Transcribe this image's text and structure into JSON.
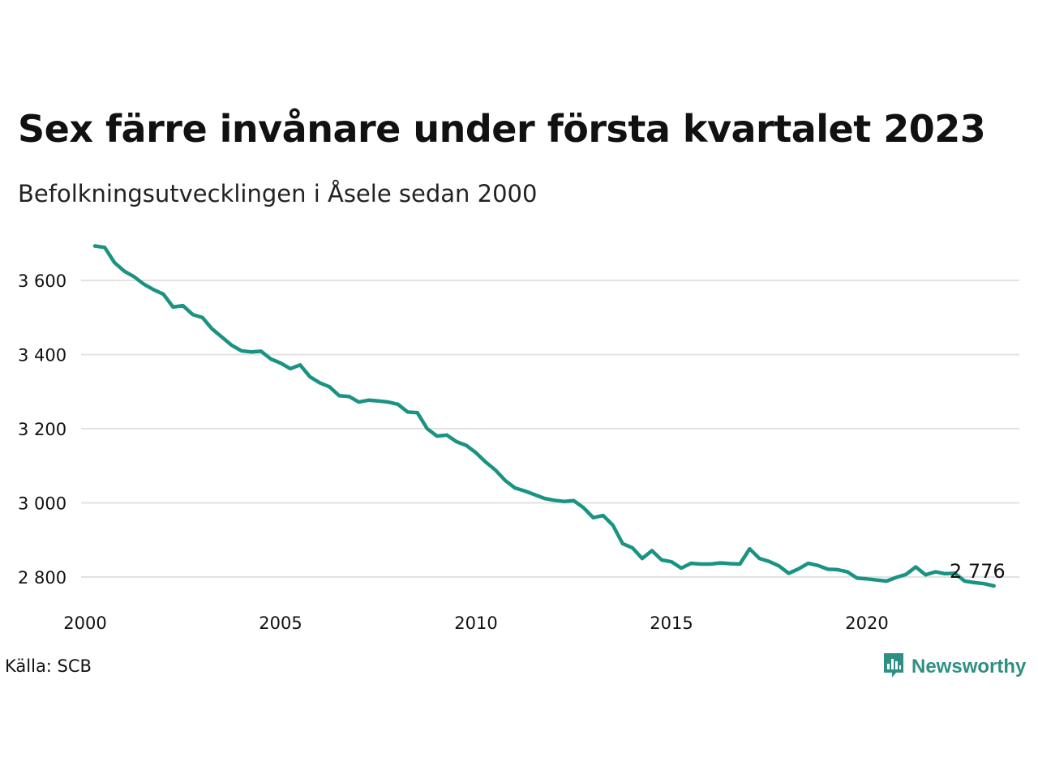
{
  "title": "Sex färre invånare under första kvartalet 2023",
  "subtitle": "Befolkningsutvecklingen i Åsele sedan 2000",
  "source": "Källa: SCB",
  "brand": {
    "name": "Newsworthy",
    "icon": "newsworthy-logo-icon",
    "color": "#2f8f83"
  },
  "chart_data": {
    "type": "line",
    "title": "Sex färre invånare under första kvartalet 2023",
    "subtitle": "Befolkningsutvecklingen i Åsele sedan 2000",
    "color": "#1a9383",
    "xlim": [
      2000,
      2024
    ],
    "ylim": [
      2740,
      3720
    ],
    "y_ticks": [
      2800,
      3000,
      3200,
      3400,
      3600
    ],
    "y_tick_labels": [
      "2 800",
      "3 000",
      "3 200",
      "3 400",
      "3 600"
    ],
    "x_ticks": [
      2000,
      2005,
      2010,
      2015,
      2020
    ],
    "x_tick_labels": [
      "2000",
      "2005",
      "2010",
      "2015",
      "2020"
    ],
    "grid": "horizontal",
    "end_label": "2 776",
    "series": [
      {
        "x": [
          2000.25,
          2000.5,
          2000.75,
          2001,
          2001.25,
          2001.5,
          2001.75,
          2002,
          2002.25,
          2002.5,
          2002.75,
          2003,
          2003.25,
          2003.5,
          2003.75,
          2004,
          2004.25,
          2004.5,
          2004.75,
          2005,
          2005.25,
          2005.5,
          2005.75,
          2006,
          2006.25,
          2006.5,
          2006.75,
          2007,
          2007.25,
          2007.5,
          2007.75,
          2008,
          2008.25,
          2008.5,
          2008.75,
          2009,
          2009.25,
          2009.5,
          2009.75,
          2010,
          2010.25,
          2010.5,
          2010.75,
          2011,
          2011.25,
          2011.5,
          2011.75,
          2012,
          2012.25,
          2012.5,
          2012.75,
          2013,
          2013.25,
          2013.5,
          2013.75,
          2014,
          2014.25,
          2014.5,
          2014.75,
          2015,
          2015.25,
          2015.5,
          2015.75,
          2016,
          2016.25,
          2016.5,
          2016.75,
          2017,
          2017.25,
          2017.5,
          2017.75,
          2018,
          2018.25,
          2018.5,
          2018.75,
          2019,
          2019.25,
          2019.5,
          2019.75,
          2020,
          2020.25,
          2020.5,
          2020.75,
          2021,
          2021.25,
          2021.5,
          2021.75,
          2022,
          2022.25,
          2022.5,
          2022.75,
          2023,
          2023.25
        ],
        "values": [
          3693,
          3689,
          3648,
          3625,
          3610,
          3590,
          3575,
          3563,
          3528,
          3532,
          3508,
          3500,
          3469,
          3447,
          3425,
          3410,
          3407,
          3409,
          3388,
          3377,
          3362,
          3372,
          3340,
          3324,
          3313,
          3289,
          3287,
          3272,
          3277,
          3275,
          3272,
          3266,
          3245,
          3243,
          3200,
          3180,
          3183,
          3165,
          3155,
          3135,
          3110,
          3088,
          3060,
          3040,
          3032,
          3022,
          3012,
          3007,
          3004,
          3006,
          2987,
          2960,
          2966,
          2940,
          2890,
          2879,
          2850,
          2871,
          2846,
          2841,
          2824,
          2837,
          2835,
          2835,
          2838,
          2836,
          2835,
          2876,
          2850,
          2842,
          2830,
          2810,
          2822,
          2837,
          2831,
          2821,
          2820,
          2814,
          2797,
          2795,
          2792,
          2789,
          2799,
          2807,
          2827,
          2806,
          2814,
          2809,
          2810,
          2789,
          2785,
          2782,
          2776
        ]
      }
    ]
  }
}
